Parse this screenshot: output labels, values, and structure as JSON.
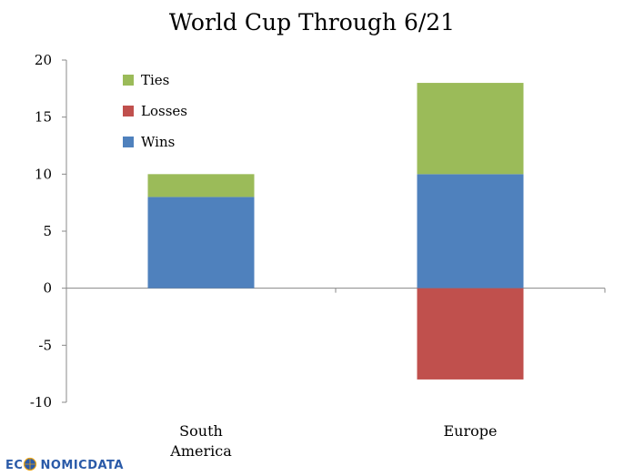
{
  "chart_data": {
    "type": "bar",
    "stacked": true,
    "title": "World Cup Through 6/21",
    "categories": [
      "South America",
      "Europe"
    ],
    "category_lines": [
      [
        "South",
        "America"
      ],
      [
        "Europe"
      ]
    ],
    "series": [
      {
        "name": "Wins",
        "values": [
          8,
          10
        ],
        "color": "#4f81bd"
      },
      {
        "name": "Losses",
        "values": [
          0,
          -8
        ],
        "color": "#c0504d"
      },
      {
        "name": "Ties",
        "values": [
          2,
          8
        ],
        "color": "#9bbb59"
      }
    ],
    "legend_order": [
      "Ties",
      "Losses",
      "Wins"
    ],
    "legend_position": "top-left",
    "ylim": [
      -10,
      20
    ],
    "yticks": [
      20,
      15,
      10,
      5,
      0,
      -5,
      -10
    ],
    "grid": false
  },
  "branding": {
    "logo_text": "ECONOMICDATA",
    "logo_text_before": "EC",
    "logo_text_after": "NOMICDATA",
    "colors": {
      "primary": "#2a5aa8",
      "accent": "#e8a317"
    }
  }
}
